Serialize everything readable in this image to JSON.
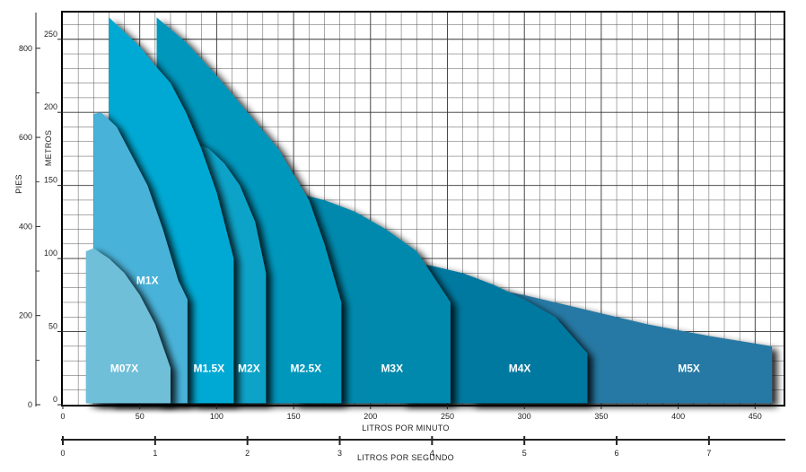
{
  "chart_data": {
    "type": "area",
    "xlabel": "LITROS POR MINUTO",
    "x2label": "LITROS POR SEGUNDO",
    "ylabel_left": "PIES",
    "ylabel_inner": "METROS",
    "xlim": [
      0,
      470
    ],
    "ylim": [
      0,
      262
    ],
    "x_ticks": [
      "0",
      "50",
      "100",
      "150",
      "200",
      "250",
      "300",
      "350",
      "400",
      "450"
    ],
    "x_tick_values": [
      0,
      50,
      100,
      150,
      200,
      250,
      300,
      350,
      400,
      450
    ],
    "x2_ticks": [
      "0",
      "1",
      "2",
      "3",
      "4",
      "5",
      "6",
      "7"
    ],
    "x2_tick_values": [
      0,
      1,
      2,
      3,
      4,
      5,
      6,
      7
    ],
    "y_ticks_metros": [
      "0",
      "50",
      "100",
      "150",
      "200",
      "250"
    ],
    "y_tick_values_metros": [
      0,
      50,
      100,
      150,
      200,
      250
    ],
    "y_ticks_pies": [
      "0",
      "200",
      "400",
      "600",
      "800"
    ],
    "y_tick_values_pies": [
      0,
      200,
      400,
      600,
      800
    ],
    "grid": true,
    "series": [
      {
        "name": "M07X",
        "color": "#6fbfd9",
        "x_range": [
          15,
          70
        ],
        "label_at": [
          40,
          25
        ],
        "top_curve": [
          [
            15,
            105
          ],
          [
            20,
            107
          ],
          [
            30,
            100
          ],
          [
            40,
            90
          ],
          [
            50,
            75
          ],
          [
            60,
            55
          ],
          [
            65,
            40
          ],
          [
            70,
            25
          ]
        ]
      },
      {
        "name": "M1X",
        "color": "#4ab2d8",
        "x_range": [
          20,
          81
        ],
        "label_at": [
          55,
          85
        ],
        "top_curve": [
          [
            20,
            199
          ],
          [
            25,
            200
          ],
          [
            35,
            190
          ],
          [
            45,
            170
          ],
          [
            55,
            150
          ],
          [
            65,
            120
          ],
          [
            75,
            85
          ],
          [
            81,
            72
          ]
        ]
      },
      {
        "name": "M1.5X",
        "color": "#00a9d3",
        "x_range": [
          30,
          111
        ],
        "label_at": [
          95,
          25
        ],
        "top_curve": [
          [
            30,
            265
          ],
          [
            40,
            255
          ],
          [
            50,
            245
          ],
          [
            60,
            232
          ],
          [
            70,
            220
          ],
          [
            80,
            200
          ],
          [
            90,
            175
          ],
          [
            100,
            145
          ],
          [
            111,
            100
          ]
        ]
      },
      {
        "name": "M2X",
        "color": "#0ca3c8",
        "x_range": [
          84,
          132
        ],
        "label_at": [
          121,
          25
        ],
        "top_curve": [
          [
            84,
            180
          ],
          [
            95,
            175
          ],
          [
            105,
            165
          ],
          [
            115,
            150
          ],
          [
            125,
            125
          ],
          [
            132,
            90
          ]
        ]
      },
      {
        "name": "M2.5X",
        "color": "#0097bd",
        "x_range": [
          61,
          181
        ],
        "label_at": [
          158,
          25
        ],
        "top_curve": [
          [
            61,
            265
          ],
          [
            80,
            248
          ],
          [
            100,
            225
          ],
          [
            120,
            200
          ],
          [
            140,
            175
          ],
          [
            160,
            140
          ],
          [
            170,
            110
          ],
          [
            181,
            70
          ]
        ]
      },
      {
        "name": "M3X",
        "color": "#0389ad",
        "x_range": [
          150,
          252
        ],
        "label_at": [
          214,
          25
        ],
        "top_curve": [
          [
            150,
            145
          ],
          [
            170,
            140
          ],
          [
            190,
            132
          ],
          [
            210,
            120
          ],
          [
            230,
            105
          ],
          [
            252,
            70
          ]
        ]
      },
      {
        "name": "M4X",
        "color": "#0479a0",
        "x_range": [
          220,
          341
        ],
        "label_at": [
          297,
          25
        ],
        "top_curve": [
          [
            220,
            98
          ],
          [
            240,
            95
          ],
          [
            260,
            90
          ],
          [
            280,
            82
          ],
          [
            300,
            72
          ],
          [
            320,
            60
          ],
          [
            341,
            35
          ]
        ]
      },
      {
        "name": "M5X",
        "color": "#2879a4",
        "x_range": [
          265,
          461
        ],
        "label_at": [
          407,
          25
        ],
        "top_curve": [
          [
            265,
            82
          ],
          [
            300,
            75
          ],
          [
            340,
            65
          ],
          [
            380,
            55
          ],
          [
            420,
            47
          ],
          [
            461,
            40
          ]
        ]
      }
    ]
  }
}
